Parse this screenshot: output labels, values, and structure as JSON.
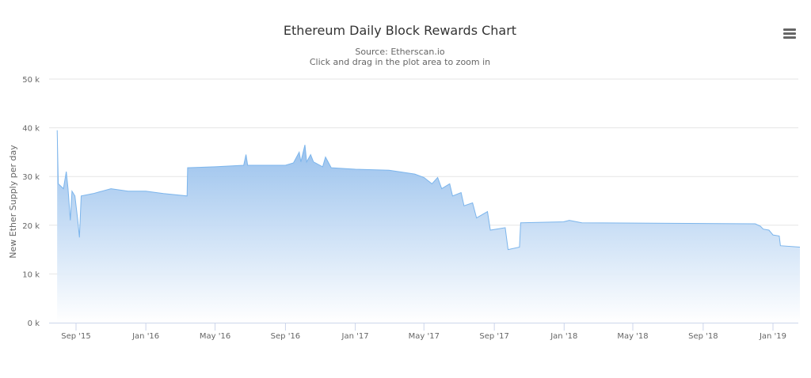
{
  "title": "Ethereum Daily Block Rewards Chart",
  "subtitle": "Source: Etherscan.io",
  "subtitle2": "Click and drag in the plot area to zoom in",
  "menu_icon": "hamburger-menu-icon",
  "colors": {
    "line": "#7cb5ec",
    "fill_top": "#8ab8ea",
    "fill_bottom": "#ffffff",
    "grid": "#e6e6e6"
  },
  "chart_data": {
    "type": "area",
    "title": "Ethereum Daily Block Rewards Chart",
    "ylabel": "New Ether Supply per day",
    "xlabel": "",
    "ylim": [
      0,
      50000
    ],
    "yticks": [
      0,
      10000,
      20000,
      30000,
      40000,
      50000
    ],
    "ytick_labels": [
      "0 k",
      "10 k",
      "20 k",
      "30 k",
      "40 k",
      "50 k"
    ],
    "xticks": [
      "2015-09-01",
      "2016-01-01",
      "2016-05-01",
      "2016-09-01",
      "2017-01-01",
      "2017-05-01",
      "2017-09-01",
      "2018-01-01",
      "2018-05-01",
      "2018-09-01",
      "2019-01-01"
    ],
    "xtick_labels": [
      "Sep '15",
      "Jan '16",
      "May '16",
      "Sep '16",
      "Jan '17",
      "May '17",
      "Sep '17",
      "Jan '18",
      "May '18",
      "Sep '18",
      "Jan '19"
    ],
    "grid": true,
    "legend": "none",
    "series": [
      {
        "x": [
          "2015-07-30",
          "2015-08-01",
          "2015-08-10",
          "2015-08-15",
          "2015-08-18",
          "2015-08-22",
          "2015-08-25",
          "2015-08-30",
          "2015-09-04",
          "2015-09-07",
          "2015-09-10",
          "2015-10-01",
          "2015-11-01",
          "2015-12-01",
          "2016-01-01",
          "2016-02-01",
          "2016-03-13",
          "2016-03-14",
          "2016-05-01",
          "2016-06-20",
          "2016-06-24",
          "2016-06-27",
          "2016-09-01",
          "2016-09-15",
          "2016-09-25",
          "2016-09-28",
          "2016-10-05",
          "2016-10-08",
          "2016-10-15",
          "2016-10-20",
          "2016-11-05",
          "2016-11-10",
          "2016-11-20",
          "2017-01-01",
          "2017-03-01",
          "2017-04-15",
          "2017-05-01",
          "2017-05-15",
          "2017-05-25",
          "2017-06-01",
          "2017-06-15",
          "2017-06-20",
          "2017-07-05",
          "2017-07-10",
          "2017-07-25",
          "2017-08-01",
          "2017-08-20",
          "2017-08-25",
          "2017-09-20",
          "2017-09-25",
          "2017-10-15",
          "2017-10-17",
          "2017-12-31",
          "2018-01-10",
          "2018-02-01",
          "2018-12-01",
          "2018-12-10",
          "2018-12-15",
          "2018-12-25",
          "2019-01-01",
          "2019-01-12",
          "2019-01-14",
          "2019-02-17"
        ],
        "y": [
          39500,
          28500,
          27500,
          31000,
          27500,
          21000,
          27000,
          26000,
          21000,
          17500,
          26000,
          26500,
          27500,
          27000,
          27000,
          26500,
          26000,
          31800,
          32000,
          32300,
          34500,
          32300,
          32300,
          32800,
          35000,
          33000,
          36500,
          33000,
          34500,
          33000,
          32000,
          34000,
          31800,
          31500,
          31300,
          30500,
          29800,
          28500,
          29800,
          27500,
          28500,
          26000,
          26700,
          24000,
          24600,
          21500,
          22800,
          19000,
          19500,
          15000,
          15500,
          20500,
          20700,
          21000,
          20500,
          20300,
          19800,
          19200,
          19000,
          18000,
          17800,
          15800,
          15500
        ]
      }
    ]
  }
}
